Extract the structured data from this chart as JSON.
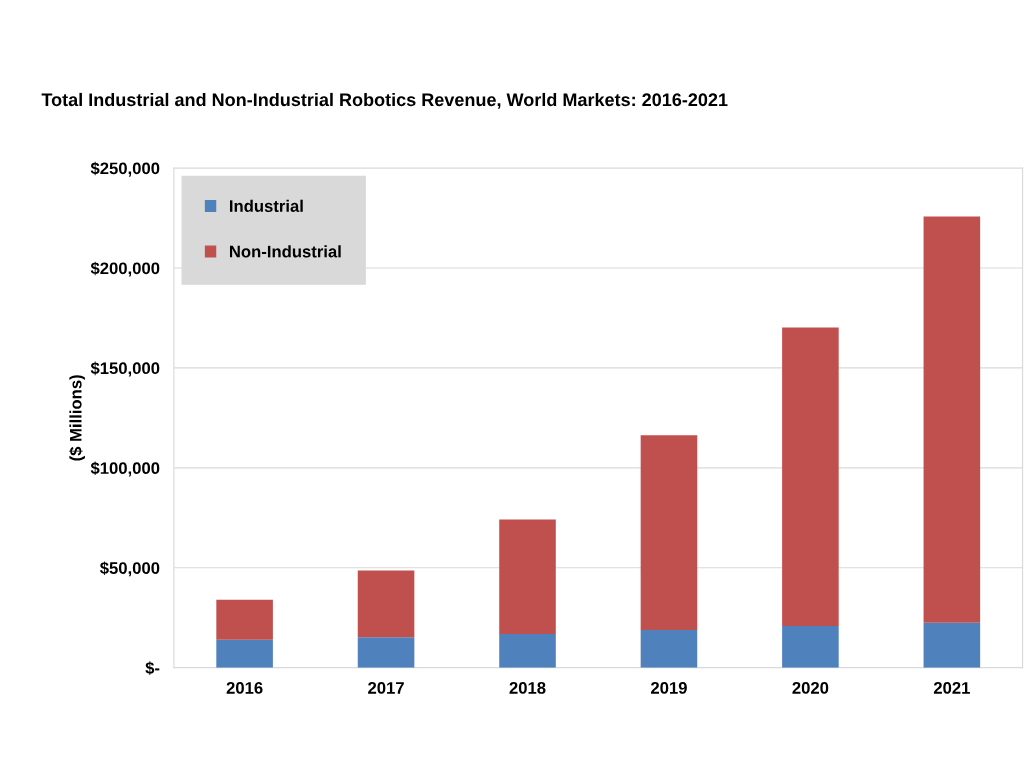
{
  "chart_data": {
    "type": "bar",
    "title": "Total Industrial and Non-Industrial Robotics Revenue, World Markets: 2016-2021",
    "ylabel": "($ Millions)",
    "categories": [
      "2016",
      "2017",
      "2018",
      "2019",
      "2020",
      "2021"
    ],
    "stacked": true,
    "series": [
      {
        "name": "Industrial",
        "color": "#4f81bd",
        "values": [
          14000,
          15200,
          16900,
          18800,
          20800,
          22500
        ]
      },
      {
        "name": "Non-Industrial",
        "color": "#c0504d",
        "values": [
          20000,
          33400,
          57300,
          97500,
          149400,
          203300
        ]
      }
    ],
    "ylim": [
      0,
      250000
    ],
    "yticks": [
      {
        "value": 0,
        "label": "$-"
      },
      {
        "value": 50000,
        "label": "$50,000"
      },
      {
        "value": 100000,
        "label": "$100,000"
      },
      {
        "value": 150000,
        "label": "$150,000"
      },
      {
        "value": 200000,
        "label": "$200,000"
      },
      {
        "value": 250000,
        "label": "$250,000"
      }
    ],
    "grid": "y",
    "legend": "top left"
  }
}
